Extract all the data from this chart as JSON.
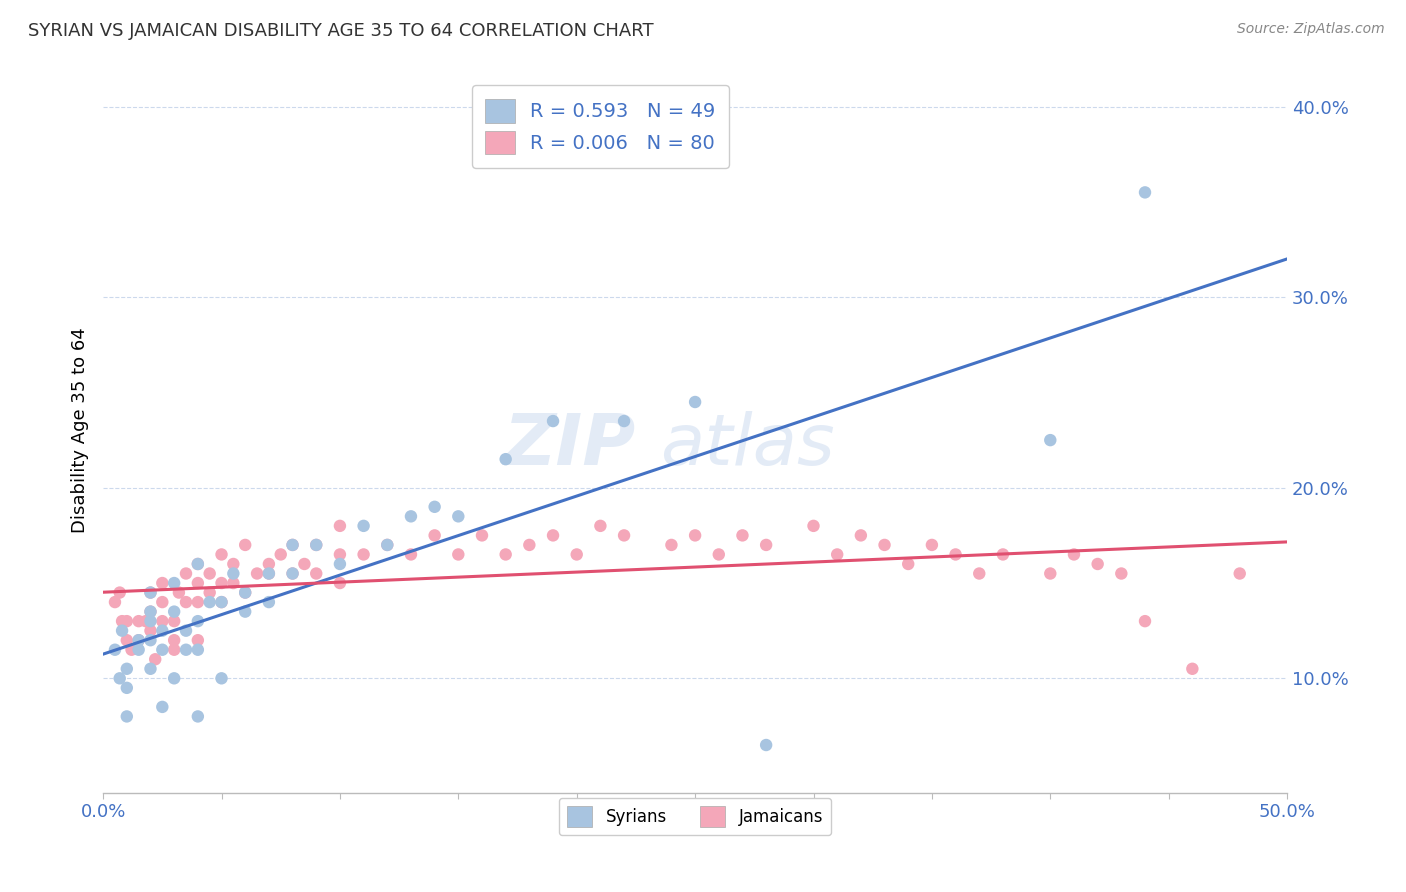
{
  "title": "SYRIAN VS JAMAICAN DISABILITY AGE 35 TO 64 CORRELATION CHART",
  "source": "Source: ZipAtlas.com",
  "ylabel": "Disability Age 35 to 64",
  "xlim": [
    0.0,
    0.5
  ],
  "ylim": [
    0.04,
    0.42
  ],
  "xticks": [
    0.0,
    0.05,
    0.1,
    0.15,
    0.2,
    0.25,
    0.3,
    0.35,
    0.4,
    0.45,
    0.5
  ],
  "yticks": [
    0.1,
    0.2,
    0.3,
    0.4
  ],
  "ytick_labels": [
    "10.0%",
    "20.0%",
    "30.0%",
    "40.0%"
  ],
  "syrian_R": "0.593",
  "syrian_N": "49",
  "jamaican_R": "0.006",
  "jamaican_N": "80",
  "syrian_color": "#a8c4e0",
  "jamaican_color": "#f4a7b9",
  "syrian_line_color": "#4472c4",
  "jamaican_line_color": "#e05070",
  "syrians_x": [
    0.005,
    0.007,
    0.008,
    0.01,
    0.01,
    0.01,
    0.015,
    0.015,
    0.02,
    0.02,
    0.02,
    0.02,
    0.02,
    0.025,
    0.025,
    0.025,
    0.03,
    0.03,
    0.03,
    0.035,
    0.035,
    0.04,
    0.04,
    0.04,
    0.04,
    0.045,
    0.05,
    0.05,
    0.055,
    0.06,
    0.06,
    0.07,
    0.07,
    0.08,
    0.08,
    0.09,
    0.1,
    0.11,
    0.12,
    0.13,
    0.14,
    0.15,
    0.17,
    0.19,
    0.22,
    0.25,
    0.28,
    0.4,
    0.44
  ],
  "syrians_y": [
    0.115,
    0.1,
    0.125,
    0.095,
    0.105,
    0.08,
    0.12,
    0.115,
    0.135,
    0.145,
    0.12,
    0.13,
    0.105,
    0.115,
    0.125,
    0.085,
    0.15,
    0.135,
    0.1,
    0.125,
    0.115,
    0.16,
    0.13,
    0.115,
    0.08,
    0.14,
    0.14,
    0.1,
    0.155,
    0.135,
    0.145,
    0.155,
    0.14,
    0.155,
    0.17,
    0.17,
    0.16,
    0.18,
    0.17,
    0.185,
    0.19,
    0.185,
    0.215,
    0.235,
    0.235,
    0.245,
    0.065,
    0.225,
    0.355
  ],
  "jamaicans_x": [
    0.005,
    0.007,
    0.008,
    0.01,
    0.01,
    0.012,
    0.015,
    0.015,
    0.018,
    0.02,
    0.02,
    0.02,
    0.022,
    0.025,
    0.025,
    0.025,
    0.03,
    0.03,
    0.03,
    0.032,
    0.035,
    0.035,
    0.04,
    0.04,
    0.04,
    0.04,
    0.045,
    0.045,
    0.05,
    0.05,
    0.05,
    0.055,
    0.055,
    0.06,
    0.06,
    0.065,
    0.07,
    0.07,
    0.075,
    0.08,
    0.08,
    0.085,
    0.09,
    0.09,
    0.1,
    0.1,
    0.1,
    0.11,
    0.12,
    0.13,
    0.14,
    0.15,
    0.16,
    0.17,
    0.18,
    0.19,
    0.2,
    0.21,
    0.22,
    0.24,
    0.25,
    0.26,
    0.27,
    0.28,
    0.3,
    0.31,
    0.32,
    0.33,
    0.34,
    0.35,
    0.36,
    0.37,
    0.38,
    0.4,
    0.41,
    0.42,
    0.43,
    0.44,
    0.46,
    0.48
  ],
  "jamaicans_y": [
    0.14,
    0.145,
    0.13,
    0.12,
    0.13,
    0.115,
    0.13,
    0.12,
    0.13,
    0.125,
    0.135,
    0.145,
    0.11,
    0.13,
    0.14,
    0.15,
    0.12,
    0.13,
    0.115,
    0.145,
    0.14,
    0.155,
    0.14,
    0.15,
    0.12,
    0.16,
    0.145,
    0.155,
    0.15,
    0.14,
    0.165,
    0.15,
    0.16,
    0.145,
    0.17,
    0.155,
    0.16,
    0.155,
    0.165,
    0.155,
    0.17,
    0.16,
    0.155,
    0.17,
    0.165,
    0.15,
    0.18,
    0.165,
    0.17,
    0.165,
    0.175,
    0.165,
    0.175,
    0.165,
    0.17,
    0.175,
    0.165,
    0.18,
    0.175,
    0.17,
    0.175,
    0.165,
    0.175,
    0.17,
    0.18,
    0.165,
    0.175,
    0.17,
    0.16,
    0.17,
    0.165,
    0.155,
    0.165,
    0.155,
    0.165,
    0.16,
    0.155,
    0.13,
    0.105,
    0.155
  ]
}
